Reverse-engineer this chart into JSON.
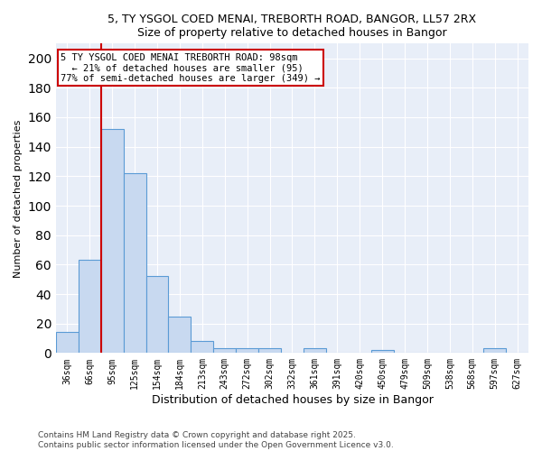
{
  "title1": "5, TY YSGOL COED MENAI, TREBORTH ROAD, BANGOR, LL57 2RX",
  "title2": "Size of property relative to detached houses in Bangor",
  "xlabel": "Distribution of detached houses by size in Bangor",
  "ylabel": "Number of detached properties",
  "categories": [
    "36sqm",
    "66sqm",
    "95sqm",
    "125sqm",
    "154sqm",
    "184sqm",
    "213sqm",
    "243sqm",
    "272sqm",
    "302sqm",
    "332sqm",
    "361sqm",
    "391sqm",
    "420sqm",
    "450sqm",
    "479sqm",
    "509sqm",
    "538sqm",
    "568sqm",
    "597sqm",
    "627sqm"
  ],
  "values": [
    14,
    63,
    152,
    122,
    52,
    25,
    8,
    3,
    3,
    3,
    0,
    3,
    0,
    0,
    2,
    0,
    0,
    0,
    0,
    3,
    0
  ],
  "bar_color": "#c8d9f0",
  "bar_edge_color": "#5b9bd5",
  "annotation_line1": "5 TY YSGOL COED MENAI TREBORTH ROAD: 98sqm",
  "annotation_line2": "  ← 21% of detached houses are smaller (95)",
  "annotation_line3": "77% of semi-detached houses are larger (349) →",
  "annotation_box_color": "#ffffff",
  "annotation_box_edge": "#cc0000",
  "vline_color": "#cc0000",
  "footer1": "Contains HM Land Registry data © Crown copyright and database right 2025.",
  "footer2": "Contains public sector information licensed under the Open Government Licence v3.0.",
  "ylim": [
    0,
    210
  ],
  "bg_color": "#ffffff",
  "plot_bg_color": "#e8eef8",
  "grid_color": "#ffffff"
}
